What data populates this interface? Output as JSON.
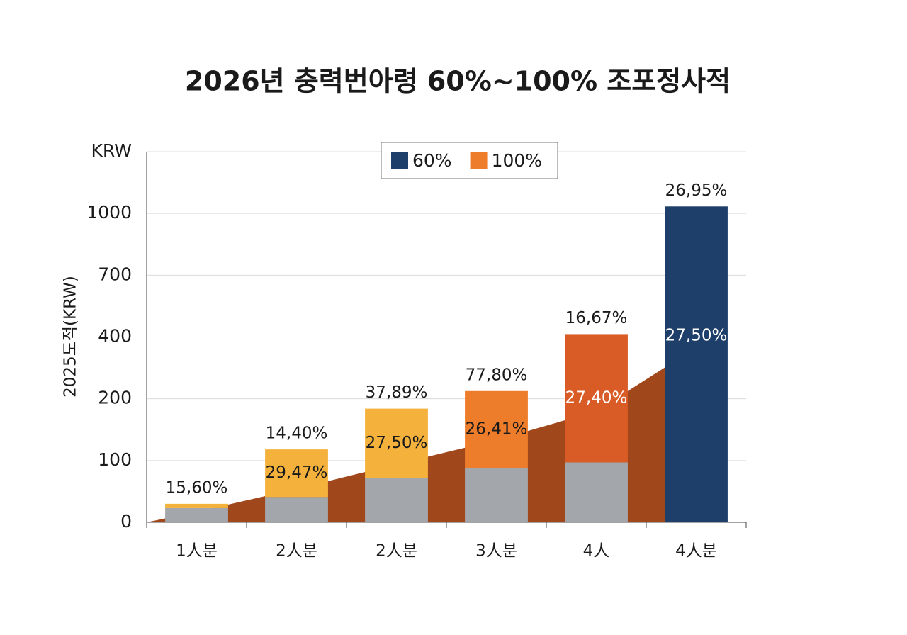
{
  "chart_data": {
    "type": "bar",
    "title": "2026년 충력번아령 60%~100% 조포정사적",
    "y_label": "2025도적(KRW)",
    "y_unit": "KRW",
    "categories": [
      "1人분",
      "2人분",
      "2人분",
      "3人분",
      "4人",
      "4人분"
    ],
    "ylim": [
      0,
      1300
    ],
    "yticks": [
      0,
      100,
      200,
      400,
      700,
      1000
    ],
    "grid": true,
    "legend": "top",
    "series": [
      {
        "color": "#a3a6aa",
        "values": [
          23,
          41,
          72,
          88,
          97,
          null
        ]
      },
      {
        "name": "60%",
        "color": "#1f3f6b",
        "values": [
          null,
          null,
          null,
          null,
          null,
          1034
        ]
      },
      {
        "name": "100%",
        "color": "#ee7d2b",
        "colors": [
          "#f4b23d",
          "#f4b23d",
          "#f4b23d",
          "#ee7d2b",
          "#d95b25",
          null
        ],
        "values": [
          7,
          77,
          112,
          137,
          317,
          null
        ]
      }
    ],
    "top_labels": [
      "15,60%",
      "14,40%",
      "37,89%",
      "77,80%",
      "16,67%",
      "26,95%"
    ],
    "inner_labels": [
      null,
      "29,47%",
      "27,50%",
      "26,41%",
      "27,40%",
      "27,50%"
    ],
    "trend": {
      "color": "#a0471c",
      "values": [
        17,
        54,
        94,
        133,
        180,
        366
      ]
    }
  }
}
